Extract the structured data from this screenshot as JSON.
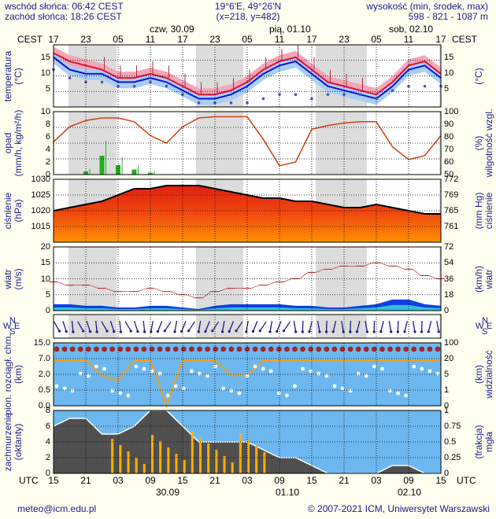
{
  "header": {
    "sunrise": "wschód słońca: 06:42 CEST",
    "sunset": "zachód słońca: 18:26 CEST",
    "coords": "19°6'E, 49°26'N",
    "grid": "(x=218,  y=482)",
    "alt_label": "wysokość (min, środek, max)",
    "alt_values": "598 - 821 - 1087 m"
  },
  "top_axis": {
    "tz": "CEST",
    "hours": [
      "17",
      "23",
      "05",
      "11",
      "17",
      "23",
      "05",
      "11",
      "17",
      "23",
      "05",
      "11",
      "17"
    ],
    "days": [
      "czw, 30.09",
      "pią, 01.10",
      "sob, 02.10"
    ]
  },
  "bottom_axis": {
    "tz": "UTC",
    "hours": [
      "15",
      "21",
      "03",
      "09",
      "15",
      "21",
      "03",
      "09",
      "15",
      "21",
      "03",
      "09",
      "15"
    ],
    "days": [
      "30.09",
      "01.10",
      "02.10"
    ]
  },
  "panels": {
    "temperature": {
      "left_label": "temperatura\n(°C)",
      "right_label": "(°C)",
      "left_ticks": [
        "15",
        "10",
        "5"
      ],
      "right_ticks": [
        "15",
        "10",
        "5"
      ]
    },
    "precip": {
      "left_label": "opad\n(mm/h, kg/m²/h)",
      "right_label": "(%)\nwilgotność wzgl.",
      "left_ticks": [
        "10",
        "8",
        "6",
        "4",
        "2",
        "0"
      ],
      "right_ticks": [
        "100",
        "90",
        "80",
        "70",
        "60",
        "50"
      ]
    },
    "pressure": {
      "left_label": "ciśnienie\n(hPa)",
      "right_label": "(mm Hg)\nciśnienie",
      "left_ticks": [
        "1030",
        "1025",
        "1020",
        "1015"
      ],
      "right_ticks": [
        "772",
        "769",
        "765",
        "761"
      ]
    },
    "wind": {
      "left_label": "wiatr\n(m/s)",
      "right_label": "(km/h)\nwiatr",
      "left_ticks": [
        "20",
        "15",
        "10",
        "5",
        "0"
      ],
      "right_ticks": [
        "72",
        "54",
        "36",
        "18",
        "0"
      ]
    },
    "direction": {
      "compass": [
        "N",
        "W",
        "E",
        "S"
      ]
    },
    "visibility": {
      "left_label": "pion. rozciągł. chm.\n(km)",
      "right_label": "(km)\nwidzialność",
      "left_ticks": [
        "15.0",
        "7.0",
        "2.0",
        "0.5",
        "0.0"
      ],
      "right_ticks": [
        "100",
        "20",
        "5",
        "1",
        "0"
      ]
    },
    "cloud": {
      "left_label": "zachmurzenie\n(oktanty)",
      "right_label": "(frakcja)\nmgła",
      "left_ticks": [
        "8",
        "6",
        "4",
        "2",
        "0"
      ],
      "right_ticks": [
        "1",
        "0.75",
        "0.5",
        "0.25",
        "0"
      ]
    }
  },
  "footer": {
    "email": "meteo@icm.edu.pl",
    "copyright": "© 2007-2021 ICM, Uniwersytet Warszawski"
  },
  "chart_data": [
    {
      "type": "line",
      "title": "",
      "ylabel": "temperatura (°C)",
      "ylim": [
        2,
        17
      ],
      "x": [
        "17",
        "20",
        "23",
        "02",
        "05",
        "08",
        "11",
        "14",
        "17",
        "20",
        "23",
        "02",
        "05",
        "08",
        "11",
        "14",
        "17",
        "20",
        "23",
        "02",
        "05",
        "08",
        "11",
        "14",
        "17"
      ],
      "series": [
        {
          "name": "temperatura",
          "values": [
            15,
            13,
            12,
            11,
            9,
            9,
            10,
            9,
            7,
            5,
            5,
            6,
            8,
            11,
            13,
            14,
            11,
            8,
            7,
            6,
            5,
            8,
            12,
            13,
            10
          ]
        },
        {
          "name": "temperatura odczuwalna",
          "values": [
            14,
            11,
            10,
            10,
            8,
            8,
            9,
            8,
            6,
            4,
            4,
            5,
            7,
            10,
            12,
            13,
            10,
            7,
            6,
            5,
            4,
            7,
            11,
            12,
            9
          ]
        },
        {
          "name": "punkt rosy",
          "values": [
            11,
            9,
            8,
            8,
            7,
            7,
            8,
            7,
            5,
            3,
            3,
            3,
            3,
            4,
            5,
            5,
            4,
            5,
            5,
            5,
            4,
            6,
            7,
            7,
            7
          ]
        }
      ]
    },
    {
      "type": "line",
      "ylabel": "wilgotność wzgl. (%)",
      "ylim": [
        50,
        100
      ],
      "series": [
        {
          "name": "wilgotność",
          "values": [
            76,
            88,
            93,
            95,
            95,
            92,
            81,
            75,
            88,
            95,
            96,
            96,
            96,
            78,
            57,
            60,
            86,
            89,
            91,
            92,
            92,
            72,
            62,
            65,
            81
          ]
        },
        {
          "name": "opad",
          "values": [
            0,
            0,
            0.5,
            3,
            1.5,
            0.8,
            0.3,
            0,
            0,
            0,
            0,
            0,
            0,
            0,
            0,
            0,
            0,
            0,
            0,
            0,
            0,
            0,
            0,
            0,
            0
          ]
        }
      ]
    },
    {
      "type": "area",
      "ylabel": "ciśnienie (hPa)",
      "ylim": [
        1010,
        1030
      ],
      "series": [
        {
          "name": "ciśnienie",
          "values": [
            1020,
            1021,
            1022,
            1023,
            1025,
            1027,
            1027,
            1028,
            1028,
            1028,
            1027,
            1026,
            1025,
            1024,
            1024,
            1023,
            1023,
            1022,
            1021,
            1021,
            1022,
            1021,
            1020,
            1019,
            1019
          ]
        }
      ]
    },
    {
      "type": "line",
      "ylabel": "wiatr (m/s)",
      "ylim": [
        0,
        20
      ],
      "series": [
        {
          "name": "prędkość",
          "values": [
            2,
            2,
            1.5,
            1.5,
            1,
            1,
            1.5,
            1.5,
            1,
            0.5,
            1.5,
            2,
            2,
            2,
            2,
            1.5,
            1.5,
            1,
            1,
            1.5,
            2,
            3.5,
            3.5,
            2,
            1.5
          ]
        },
        {
          "name": "porywy",
          "values": [
            9,
            8,
            8,
            7,
            6,
            6,
            7,
            6,
            5,
            4,
            6,
            7,
            7,
            8,
            9,
            10,
            12,
            13,
            14,
            14,
            15,
            14,
            13,
            11,
            10
          ]
        }
      ]
    },
    {
      "type": "line",
      "ylabel": "widzialność (km)",
      "ylim": [
        0,
        100
      ],
      "series": [
        {
          "name": "widzialność",
          "values": [
            20,
            20,
            20,
            5,
            3,
            20,
            20,
            0,
            20,
            20,
            20,
            5,
            5,
            20,
            20,
            20,
            20,
            20,
            20,
            20,
            20,
            20,
            20,
            20,
            20
          ]
        }
      ]
    },
    {
      "type": "area",
      "ylabel": "zachmurzenie (oktanty)",
      "ylim": [
        0,
        8
      ],
      "series": [
        {
          "name": "zachmurzenie",
          "values": [
            6,
            7,
            7,
            5,
            5,
            6,
            8,
            8,
            6,
            4,
            4,
            4,
            4,
            3,
            2,
            2,
            1,
            0,
            0,
            0,
            0,
            1,
            1,
            0,
            0
          ]
        }
      ]
    }
  ]
}
